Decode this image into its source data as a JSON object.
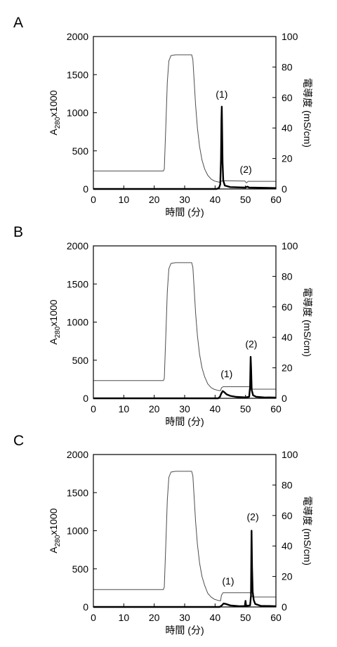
{
  "chart_data": [
    {
      "panel_label": "A",
      "type": "line",
      "xlabel": "時間 (分)",
      "ylabel": {
        "base": "A",
        "sub": "280",
        "suffix": "x1000"
      },
      "y2label": "電導度 (mS/cm)",
      "xlim": [
        0,
        60
      ],
      "ylim": [
        0,
        2000
      ],
      "y2lim": [
        0,
        100
      ],
      "xticks": [
        0,
        10,
        20,
        30,
        40,
        50,
        60
      ],
      "yticks": [
        0,
        500,
        1000,
        1500,
        2000
      ],
      "y2ticks": [
        0,
        20,
        40,
        60,
        80,
        100
      ],
      "grid": false,
      "series": [
        {
          "yaxis": 2,
          "color": "#4d4d4d",
          "points": [
            [
              0,
              11.8
            ],
            [
              23.0,
              11.8
            ],
            [
              23.3,
              13
            ],
            [
              23.8,
              40
            ],
            [
              24.3,
              70
            ],
            [
              24.8,
              84
            ],
            [
              25.5,
              87.5
            ],
            [
              27,
              88
            ],
            [
              32.3,
              88
            ],
            [
              32.7,
              85
            ],
            [
              33.1,
              72
            ],
            [
              33.6,
              55
            ],
            [
              34.2,
              40
            ],
            [
              34.9,
              28
            ],
            [
              35.7,
              19
            ],
            [
              36.6,
              13
            ],
            [
              37.6,
              9
            ],
            [
              38.7,
              6.5
            ],
            [
              39.8,
              5.2
            ],
            [
              41,
              4.6
            ],
            [
              41.8,
              4.4
            ],
            [
              42.1,
              5.2
            ],
            [
              42.6,
              5.4
            ],
            [
              49.8,
              5.2
            ],
            [
              50.3,
              4.0
            ],
            [
              50.9,
              5.0
            ],
            [
              60,
              5.0
            ]
          ]
        },
        {
          "yaxis": 1,
          "color": "#000000",
          "points": [
            [
              0,
              0
            ],
            [
              40.5,
              0
            ],
            [
              41.3,
              15
            ],
            [
              41.7,
              60
            ],
            [
              41.95,
              400
            ],
            [
              42.1,
              900
            ],
            [
              42.2,
              1080
            ],
            [
              42.3,
              820
            ],
            [
              42.45,
              350
            ],
            [
              42.7,
              110
            ],
            [
              43.2,
              45
            ],
            [
              45,
              25
            ],
            [
              49.8,
              18
            ],
            [
              50.6,
              30
            ],
            [
              51.2,
              18
            ],
            [
              60,
              12
            ]
          ]
        }
      ],
      "annotations": [
        {
          "text": "(1)",
          "x": 42.2,
          "y": 1200
        },
        {
          "text": "(2)",
          "x": 50.1,
          "y": 210
        }
      ]
    },
    {
      "panel_label": "B",
      "type": "line",
      "xlabel": "時間 (分)",
      "ylabel": {
        "base": "A",
        "sub": "280",
        "suffix": "x1000"
      },
      "y2label": "電導度 (mS/cm)",
      "xlim": [
        0,
        60
      ],
      "ylim": [
        0,
        2000
      ],
      "y2lim": [
        0,
        100
      ],
      "xticks": [
        0,
        10,
        20,
        30,
        40,
        50,
        60
      ],
      "yticks": [
        0,
        500,
        1000,
        1500,
        2000
      ],
      "y2ticks": [
        0,
        20,
        40,
        60,
        80,
        100
      ],
      "grid": false,
      "series": [
        {
          "yaxis": 2,
          "color": "#4d4d4d",
          "points": [
            [
              0,
              11.6
            ],
            [
              23.0,
              11.6
            ],
            [
              23.3,
              13
            ],
            [
              23.8,
              40
            ],
            [
              24.3,
              70
            ],
            [
              24.8,
              85
            ],
            [
              25.5,
              88.5
            ],
            [
              27,
              89
            ],
            [
              32.3,
              89
            ],
            [
              32.7,
              86
            ],
            [
              33.1,
              73
            ],
            [
              33.6,
              56
            ],
            [
              34.2,
              41
            ],
            [
              34.9,
              29
            ],
            [
              35.7,
              20
            ],
            [
              36.6,
              14
            ],
            [
              37.6,
              9.5
            ],
            [
              38.7,
              7
            ],
            [
              39.8,
              5.8
            ],
            [
              41,
              5.2
            ],
            [
              41.8,
              5.0
            ],
            [
              42.1,
              6.8
            ],
            [
              42.6,
              7.6
            ],
            [
              51.6,
              7.6
            ],
            [
              51.9,
              6.4
            ],
            [
              52.4,
              6.0
            ],
            [
              60,
              6.0
            ]
          ]
        },
        {
          "yaxis": 1,
          "color": "#000000",
          "points": [
            [
              0,
              0
            ],
            [
              41,
              0
            ],
            [
              41.6,
              20
            ],
            [
              42.0,
              60
            ],
            [
              42.5,
              95
            ],
            [
              43.0,
              82
            ],
            [
              43.8,
              52
            ],
            [
              45,
              32
            ],
            [
              47,
              18
            ],
            [
              50,
              12
            ],
            [
              51.2,
              20
            ],
            [
              51.5,
              150
            ],
            [
              51.7,
              545
            ],
            [
              51.85,
              380
            ],
            [
              52.05,
              110
            ],
            [
              52.5,
              40
            ],
            [
              53.5,
              20
            ],
            [
              56,
              12
            ],
            [
              60,
              10
            ]
          ]
        }
      ],
      "annotations": [
        {
          "text": "(1)",
          "x": 43.8,
          "y": 278
        },
        {
          "text": "(2)",
          "x": 51.9,
          "y": 667
        }
      ]
    },
    {
      "panel_label": "C",
      "type": "line",
      "xlabel": "時間 (分)",
      "ylabel": {
        "base": "A",
        "sub": "280",
        "suffix": "x1000"
      },
      "y2label": "電導度 (mS/cm)",
      "xlim": [
        0,
        60
      ],
      "ylim": [
        0,
        2000
      ],
      "y2lim": [
        0,
        100
      ],
      "xticks": [
        0,
        10,
        20,
        30,
        40,
        50,
        60
      ],
      "yticks": [
        0,
        500,
        1000,
        1500,
        2000
      ],
      "y2ticks": [
        0,
        20,
        40,
        60,
        80,
        100
      ],
      "grid": false,
      "series": [
        {
          "yaxis": 2,
          "color": "#4d4d4d",
          "points": [
            [
              0,
              11.4
            ],
            [
              23.0,
              11.4
            ],
            [
              23.3,
              13
            ],
            [
              23.8,
              40
            ],
            [
              24.3,
              70
            ],
            [
              24.8,
              85
            ],
            [
              25.5,
              88.5
            ],
            [
              27,
              89
            ],
            [
              32.3,
              89
            ],
            [
              32.7,
              86
            ],
            [
              33.1,
              73
            ],
            [
              33.6,
              56
            ],
            [
              34.2,
              41
            ],
            [
              34.9,
              29
            ],
            [
              35.7,
              20
            ],
            [
              36.6,
              14
            ],
            [
              37.6,
              9
            ],
            [
              38.7,
              6.5
            ],
            [
              39.8,
              5
            ],
            [
              41,
              4.3
            ],
            [
              41.8,
              4.0
            ],
            [
              42.1,
              7.6
            ],
            [
              42.6,
              9.3
            ],
            [
              51.6,
              9.3
            ],
            [
              51.9,
              7.4
            ],
            [
              52.4,
              6.5
            ],
            [
              60,
              6.5
            ]
          ]
        },
        {
          "yaxis": 1,
          "color": "#000000",
          "points": [
            [
              0,
              0
            ],
            [
              41.5,
              0
            ],
            [
              42.2,
              20
            ],
            [
              42.8,
              45
            ],
            [
              43.5,
              40
            ],
            [
              45,
              20
            ],
            [
              48,
              10
            ],
            [
              49.8,
              12
            ],
            [
              50.0,
              80
            ],
            [
              50.2,
              15
            ],
            [
              51.5,
              20
            ],
            [
              51.8,
              150
            ],
            [
              52.0,
              1000
            ],
            [
              52.15,
              520
            ],
            [
              52.35,
              200
            ],
            [
              52.7,
              90
            ],
            [
              53.2,
              40
            ],
            [
              55,
              15
            ],
            [
              60,
              10
            ]
          ]
        }
      ],
      "annotations": [
        {
          "text": "(1)",
          "x": 44.3,
          "y": 296
        },
        {
          "text": "(2)",
          "x": 52.4,
          "y": 1139
        }
      ]
    }
  ]
}
